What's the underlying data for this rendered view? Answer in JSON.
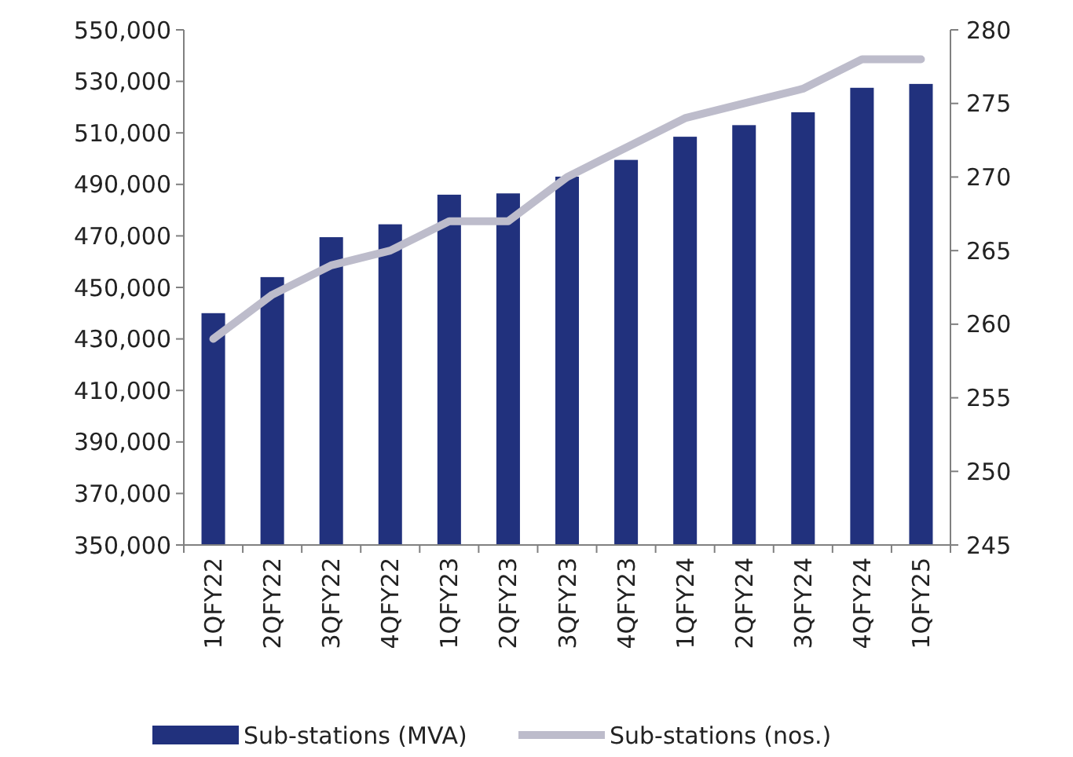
{
  "chart_data": {
    "type": "bar",
    "categories": [
      "1QFY22",
      "2QFY22",
      "3QFY22",
      "4QFY22",
      "1QFY23",
      "2QFY23",
      "3QFY23",
      "4QFY23",
      "1QFY24",
      "2QFY24",
      "3QFY24",
      "4QFY24",
      "1QFY25"
    ],
    "series": [
      {
        "name": "Sub-stations (MVA)",
        "color": "#21317d",
        "values": [
          440000,
          454000,
          469500,
          474500,
          486000,
          486500,
          493000,
          499500,
          508500,
          513000,
          518000,
          527500,
          529000
        ]
      },
      {
        "name": "Sub-stations (nos.)",
        "type": "line",
        "axis": "y2",
        "color": "#bdbccb",
        "values": [
          259,
          262,
          264,
          265,
          267,
          267,
          270,
          272,
          274,
          275,
          276,
          278,
          278
        ]
      }
    ],
    "ylim": [
      350000,
      550000
    ],
    "yticks": [
      {
        "value": 350000,
        "label": "350,000"
      },
      {
        "value": 370000,
        "label": "370,000"
      },
      {
        "value": 390000,
        "label": "390,000"
      },
      {
        "value": 410000,
        "label": "410,000"
      },
      {
        "value": 430000,
        "label": "430,000"
      },
      {
        "value": 450000,
        "label": "450,000"
      },
      {
        "value": 470000,
        "label": "470,000"
      },
      {
        "value": 490000,
        "label": "490,000"
      },
      {
        "value": 510000,
        "label": "510,000"
      },
      {
        "value": 530000,
        "label": "530,000"
      },
      {
        "value": 550000,
        "label": "550,000"
      }
    ],
    "y2lim": [
      245,
      280
    ],
    "y2ticks": [
      245,
      250,
      255,
      260,
      265,
      270,
      275,
      280
    ],
    "grid": false,
    "legend": "bottom"
  }
}
